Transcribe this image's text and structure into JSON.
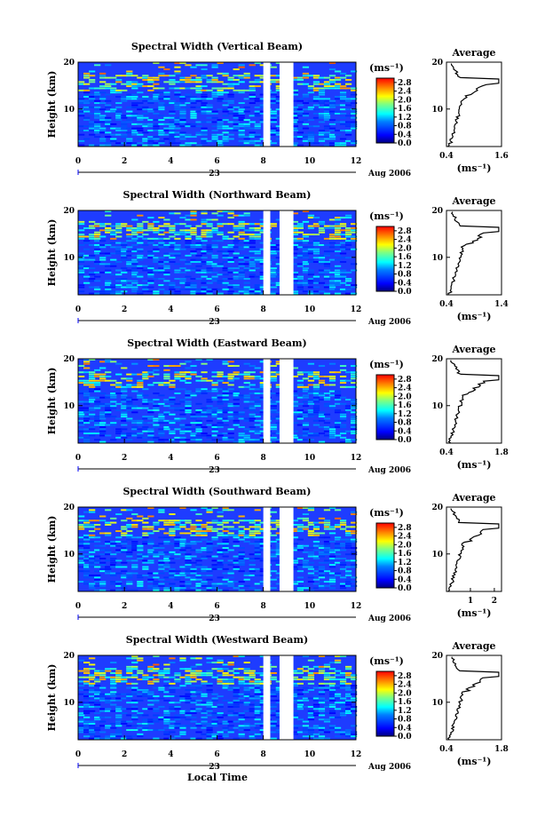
{
  "figure": {
    "xlabel": "Local Time",
    "ylabel": "Height (km)",
    "date_label": "Aug 2006",
    "day_label": "23",
    "colorbar_unit": "(ms⁻¹)",
    "colorbar_ticks": [
      "2.8",
      "2.4",
      "2.0",
      "1.6",
      "1.2",
      "0.8",
      "0.4",
      "0.0"
    ],
    "avg_title": "Average",
    "avg_unit": "(ms⁻¹)"
  },
  "chart_data": [
    {
      "type": "heatmap",
      "title": "Spectral Width (Vertical Beam)",
      "x_ticks": [
        "0",
        "2",
        "4",
        "6",
        "8",
        "10",
        "12"
      ],
      "xlim": [
        0,
        12
      ],
      "ylim": [
        2,
        20
      ],
      "y_ticks": [
        "20",
        "10"
      ],
      "gaps_hours": [
        [
          8.0,
          8.3
        ],
        [
          8.7,
          9.3
        ]
      ],
      "clim": [
        0.0,
        3.0
      ],
      "avg": {
        "title": "Average",
        "xlim": [
          0.4,
          1.6
        ],
        "x_ticks": [
          "0.4",
          "1.6"
        ]
      }
    },
    {
      "type": "heatmap",
      "title": "Spectral Width (Northward Beam)",
      "x_ticks": [
        "0",
        "2",
        "4",
        "6",
        "8",
        "10",
        "12"
      ],
      "xlim": [
        0,
        12
      ],
      "ylim": [
        2,
        20
      ],
      "y_ticks": [
        "20",
        "10"
      ],
      "gaps_hours": [
        [
          8.0,
          8.3
        ],
        [
          8.7,
          9.3
        ]
      ],
      "clim": [
        0.0,
        3.0
      ],
      "avg": {
        "title": "Average",
        "xlim": [
          0.4,
          1.4
        ],
        "x_ticks": [
          "0.4",
          "1.4"
        ]
      }
    },
    {
      "type": "heatmap",
      "title": "Spectral Width (Eastward Beam)",
      "x_ticks": [
        "0",
        "2",
        "4",
        "6",
        "8",
        "10",
        "12"
      ],
      "xlim": [
        0,
        12
      ],
      "ylim": [
        2,
        20
      ],
      "y_ticks": [
        "20",
        "10"
      ],
      "gaps_hours": [
        [
          8.0,
          8.3
        ],
        [
          8.7,
          9.3
        ]
      ],
      "clim": [
        0.0,
        3.0
      ],
      "avg": {
        "title": "Average",
        "xlim": [
          0.4,
          1.8
        ],
        "x_ticks": [
          "0.4",
          "1.8"
        ]
      }
    },
    {
      "type": "heatmap",
      "title": "Spectral Width (Southward Beam)",
      "x_ticks": [
        "0",
        "2",
        "4",
        "6",
        "8",
        "10",
        "12"
      ],
      "xlim": [
        0,
        12
      ],
      "ylim": [
        2,
        20
      ],
      "y_ticks": [
        "20",
        "10"
      ],
      "gaps_hours": [
        [
          8.0,
          8.3
        ],
        [
          8.7,
          9.3
        ]
      ],
      "clim": [
        0.0,
        3.0
      ],
      "avg": {
        "title": "Average",
        "xlim": [
          0,
          2.3
        ],
        "x_ticks": [
          "1",
          "2"
        ]
      }
    },
    {
      "type": "heatmap",
      "title": "Spectral Width (Westward Beam)",
      "x_ticks": [
        "0",
        "2",
        "4",
        "6",
        "8",
        "10",
        "12"
      ],
      "xlim": [
        0,
        12
      ],
      "ylim": [
        2,
        20
      ],
      "y_ticks": [
        "20",
        "10"
      ],
      "gaps_hours": [
        [
          8.0,
          8.3
        ],
        [
          8.7,
          9.3
        ]
      ],
      "clim": [
        0.0,
        3.0
      ],
      "avg": {
        "title": "Average",
        "xlim": [
          0.4,
          1.8
        ],
        "x_ticks": [
          "0.4",
          "1.8"
        ]
      }
    }
  ]
}
